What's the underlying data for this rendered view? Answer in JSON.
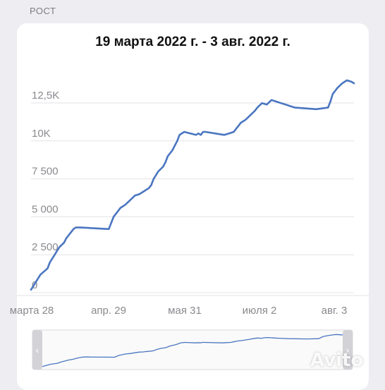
{
  "section": {
    "label": "РОСТ"
  },
  "chart_data": {
    "type": "line",
    "title": "19 марта 2022 г. - 3 авг. 2022 г.",
    "x_tick_labels": [
      "марта 28",
      "апр. 29",
      "мая 31",
      "июля 2",
      "авг. 3"
    ],
    "y_tick_labels": [
      "0",
      "2 500",
      "5 000",
      "7 500",
      "10K",
      "12,5K"
    ],
    "y_ticks": [
      0,
      2500,
      5000,
      7500,
      10000,
      12500
    ],
    "ylim": [
      -300,
      14000
    ],
    "x_range_days": [
      0,
      137
    ],
    "grid": true,
    "color": "#4a76c0",
    "series": [
      {
        "x": [
          0,
          2,
          4,
          7,
          8,
          10,
          12,
          14,
          15,
          16,
          18,
          19,
          21,
          33,
          35,
          38,
          40,
          42,
          44,
          46,
          47,
          48,
          49,
          50,
          51,
          52,
          54,
          56,
          57,
          58,
          60,
          61,
          62,
          63,
          65,
          70,
          71,
          72,
          73,
          74,
          82,
          84,
          86,
          87,
          88,
          89,
          91,
          93,
          95,
          96,
          98,
          100,
          102,
          104,
          106,
          108,
          110,
          112,
          121,
          126,
          127,
          128,
          130,
          132,
          134,
          136,
          137
        ],
        "y": [
          100,
          600,
          1100,
          1500,
          1900,
          2400,
          2900,
          3200,
          3500,
          3700,
          4100,
          4200,
          4200,
          4100,
          4900,
          5500,
          5700,
          6000,
          6300,
          6400,
          6500,
          6600,
          6700,
          6800,
          7000,
          7400,
          7900,
          8200,
          8500,
          8900,
          9300,
          9600,
          9900,
          10300,
          10500,
          10300,
          10400,
          10300,
          10500,
          10500,
          10300,
          10400,
          10500,
          10700,
          10900,
          11100,
          11300,
          11600,
          11900,
          12100,
          12400,
          12300,
          12600,
          12500,
          12400,
          12300,
          12200,
          12100,
          12000,
          12100,
          12500,
          13000,
          13400,
          13700,
          13900,
          13800,
          13700
        ]
      }
    ]
  },
  "navigator": {
    "left_arrow": "‹",
    "right_arrow": "›"
  },
  "watermark": {
    "text": "Avito"
  }
}
